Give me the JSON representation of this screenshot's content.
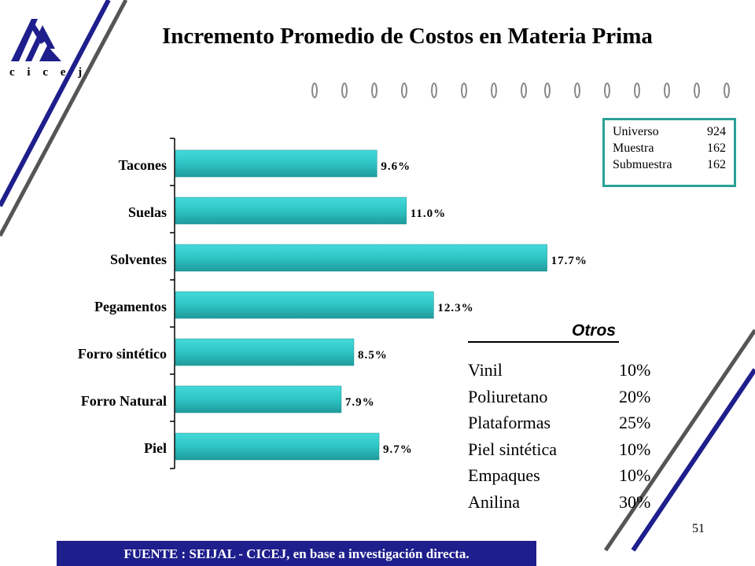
{
  "header": {
    "title": "Incremento Promedio de Costos en Materia Prima",
    "logo_text": "c i c e j"
  },
  "sample": {
    "rows": [
      {
        "label": "Universo",
        "value": "924"
      },
      {
        "label": "Muestra",
        "value": "162"
      },
      {
        "label": "Submuestra",
        "value": "162"
      }
    ]
  },
  "chart_data": {
    "type": "bar",
    "orientation": "horizontal",
    "categories": [
      "Tacones",
      "Suelas",
      "Solventes",
      "Pegamentos",
      "Forro sintético",
      "Forro Natural",
      "Piel"
    ],
    "values": [
      9.6,
      11.0,
      17.7,
      12.3,
      8.5,
      7.9,
      9.7
    ],
    "value_labels": [
      "9.6%",
      "11.0%",
      "17.7%",
      "12.3%",
      "8.5%",
      "7.9%",
      "9.7%"
    ],
    "xlim": [
      0,
      22
    ],
    "grid": false,
    "bar_color": "#2ec4c4"
  },
  "otros": {
    "title": "Otros",
    "items": [
      {
        "name": "Vinil",
        "value": "10%"
      },
      {
        "name": "Poliuretano",
        "value": "20%"
      },
      {
        "name": "Plataformas",
        "value": "25%"
      },
      {
        "name": "Piel sintética",
        "value": "10%"
      },
      {
        "name": "Empaques",
        "value": "10%"
      },
      {
        "name": "Anilina",
        "value": "30%"
      }
    ]
  },
  "page_number": "51",
  "footer": {
    "source": "FUENTE :  SEIJAL - CICEJ,  en base a investigación directa."
  },
  "colors": {
    "accent_blue": "#1e1e8c",
    "teal_border": "#2aa198",
    "decor_gray": "#555555"
  }
}
